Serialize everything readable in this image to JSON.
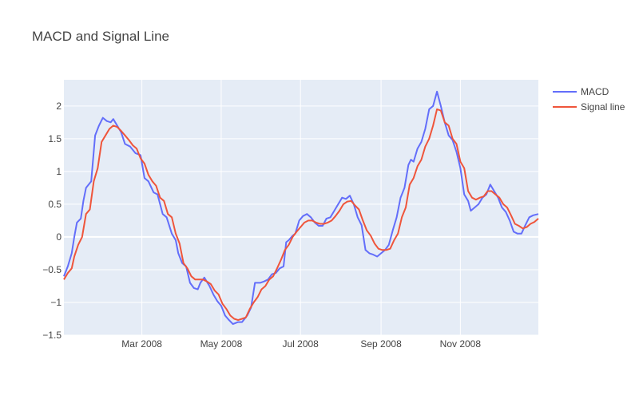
{
  "chart_data": {
    "type": "line",
    "title": "MACD and Signal Line",
    "xlabel": "",
    "ylabel": "",
    "x_range": [
      "2008-01-01",
      "2008-12-31"
    ],
    "ylim": [
      -1.5,
      2.4
    ],
    "x_ticks": [
      {
        "date": "2008-03-01",
        "label": "Mar 2008"
      },
      {
        "date": "2008-05-01",
        "label": "May 2008"
      },
      {
        "date": "2008-07-01",
        "label": "Jul 2008"
      },
      {
        "date": "2008-09-01",
        "label": "Sep 2008"
      },
      {
        "date": "2008-11-01",
        "label": "Nov 2008"
      }
    ],
    "y_ticks": [
      {
        "value": 2,
        "label": "2"
      },
      {
        "value": 1.5,
        "label": "1.5"
      },
      {
        "value": 1,
        "label": "1"
      },
      {
        "value": 0.5,
        "label": "0.5"
      },
      {
        "value": 0,
        "label": "0"
      },
      {
        "value": -0.5,
        "label": "−0.5"
      },
      {
        "value": -1,
        "label": "−1"
      },
      {
        "value": -1.5,
        "label": "−1.5"
      }
    ],
    "grid": true,
    "legend_position": "top-right",
    "series": [
      {
        "name": "MACD",
        "color": "#636efa",
        "points": [
          [
            "2008-01-01",
            -0.6
          ],
          [
            "2008-01-04",
            -0.45
          ],
          [
            "2008-01-07",
            -0.25
          ],
          [
            "2008-01-09",
            0.0
          ],
          [
            "2008-01-11",
            0.22
          ],
          [
            "2008-01-14",
            0.28
          ],
          [
            "2008-01-16",
            0.55
          ],
          [
            "2008-01-18",
            0.75
          ],
          [
            "2008-01-22",
            0.85
          ],
          [
            "2008-01-25",
            1.55
          ],
          [
            "2008-01-28",
            1.7
          ],
          [
            "2008-01-31",
            1.82
          ],
          [
            "2008-02-03",
            1.77
          ],
          [
            "2008-02-06",
            1.75
          ],
          [
            "2008-02-08",
            1.8
          ],
          [
            "2008-02-11",
            1.7
          ],
          [
            "2008-02-14",
            1.6
          ],
          [
            "2008-02-17",
            1.42
          ],
          [
            "2008-02-21",
            1.38
          ],
          [
            "2008-02-25",
            1.28
          ],
          [
            "2008-02-29",
            1.25
          ],
          [
            "2008-03-03",
            0.9
          ],
          [
            "2008-03-06",
            0.85
          ],
          [
            "2008-03-10",
            0.68
          ],
          [
            "2008-03-13",
            0.65
          ],
          [
            "2008-03-17",
            0.35
          ],
          [
            "2008-03-20",
            0.3
          ],
          [
            "2008-03-24",
            0.05
          ],
          [
            "2008-03-27",
            -0.05
          ],
          [
            "2008-03-29",
            -0.25
          ],
          [
            "2008-04-01",
            -0.4
          ],
          [
            "2008-04-04",
            -0.45
          ],
          [
            "2008-04-07",
            -0.7
          ],
          [
            "2008-04-10",
            -0.78
          ],
          [
            "2008-04-13",
            -0.8
          ],
          [
            "2008-04-15",
            -0.7
          ],
          [
            "2008-04-18",
            -0.62
          ],
          [
            "2008-04-22",
            -0.75
          ],
          [
            "2008-04-25",
            -0.88
          ],
          [
            "2008-04-28",
            -0.98
          ],
          [
            "2008-05-01",
            -1.05
          ],
          [
            "2008-05-04",
            -1.2
          ],
          [
            "2008-05-07",
            -1.27
          ],
          [
            "2008-05-10",
            -1.33
          ],
          [
            "2008-05-14",
            -1.3
          ],
          [
            "2008-05-17",
            -1.3
          ],
          [
            "2008-05-21",
            -1.2
          ],
          [
            "2008-05-24",
            -1.08
          ],
          [
            "2008-05-27",
            -0.7
          ],
          [
            "2008-05-31",
            -0.7
          ],
          [
            "2008-06-03",
            -0.68
          ],
          [
            "2008-06-06",
            -0.65
          ],
          [
            "2008-06-09",
            -0.57
          ],
          [
            "2008-06-12",
            -0.55
          ],
          [
            "2008-06-15",
            -0.48
          ],
          [
            "2008-06-18",
            -0.45
          ],
          [
            "2008-06-20",
            -0.08
          ],
          [
            "2008-06-22",
            -0.05
          ],
          [
            "2008-06-25",
            0.02
          ],
          [
            "2008-06-27",
            0.05
          ],
          [
            "2008-06-30",
            0.25
          ],
          [
            "2008-07-03",
            0.32
          ],
          [
            "2008-07-06",
            0.35
          ],
          [
            "2008-07-09",
            0.3
          ],
          [
            "2008-07-12",
            0.22
          ],
          [
            "2008-07-15",
            0.17
          ],
          [
            "2008-07-18",
            0.17
          ],
          [
            "2008-07-21",
            0.28
          ],
          [
            "2008-07-24",
            0.3
          ],
          [
            "2008-07-27",
            0.4
          ],
          [
            "2008-07-30",
            0.5
          ],
          [
            "2008-08-02",
            0.6
          ],
          [
            "2008-08-05",
            0.58
          ],
          [
            "2008-08-08",
            0.63
          ],
          [
            "2008-08-11",
            0.5
          ],
          [
            "2008-08-14",
            0.3
          ],
          [
            "2008-08-17",
            0.18
          ],
          [
            "2008-08-20",
            -0.2
          ],
          [
            "2008-08-23",
            -0.25
          ],
          [
            "2008-08-26",
            -0.27
          ],
          [
            "2008-08-29",
            -0.3
          ],
          [
            "2008-09-01",
            -0.25
          ],
          [
            "2008-09-04",
            -0.2
          ],
          [
            "2008-09-07",
            -0.12
          ],
          [
            "2008-09-10",
            0.1
          ],
          [
            "2008-09-13",
            0.3
          ],
          [
            "2008-09-16",
            0.6
          ],
          [
            "2008-09-19",
            0.75
          ],
          [
            "2008-09-22",
            1.1
          ],
          [
            "2008-09-24",
            1.18
          ],
          [
            "2008-09-26",
            1.15
          ],
          [
            "2008-09-29",
            1.35
          ],
          [
            "2008-10-02",
            1.45
          ],
          [
            "2008-10-05",
            1.65
          ],
          [
            "2008-10-08",
            1.95
          ],
          [
            "2008-10-11",
            2.0
          ],
          [
            "2008-10-14",
            2.22
          ],
          [
            "2008-10-17",
            2.0
          ],
          [
            "2008-10-20",
            1.75
          ],
          [
            "2008-10-23",
            1.55
          ],
          [
            "2008-10-26",
            1.48
          ],
          [
            "2008-10-29",
            1.3
          ],
          [
            "2008-11-01",
            1.05
          ],
          [
            "2008-11-04",
            0.65
          ],
          [
            "2008-11-07",
            0.55
          ],
          [
            "2008-11-09",
            0.4
          ],
          [
            "2008-11-12",
            0.45
          ],
          [
            "2008-11-15",
            0.5
          ],
          [
            "2008-11-18",
            0.6
          ],
          [
            "2008-11-21",
            0.65
          ],
          [
            "2008-11-24",
            0.8
          ],
          [
            "2008-11-27",
            0.7
          ],
          [
            "2008-11-30",
            0.6
          ],
          [
            "2008-12-03",
            0.45
          ],
          [
            "2008-12-06",
            0.38
          ],
          [
            "2008-12-09",
            0.25
          ],
          [
            "2008-12-12",
            0.08
          ],
          [
            "2008-12-15",
            0.05
          ],
          [
            "2008-12-18",
            0.05
          ],
          [
            "2008-12-21",
            0.18
          ],
          [
            "2008-12-24",
            0.3
          ],
          [
            "2008-12-27",
            0.33
          ],
          [
            "2008-12-31",
            0.35
          ]
        ]
      },
      {
        "name": "Signal line",
        "color": "#ef553b",
        "points": [
          [
            "2008-01-01",
            -0.65
          ],
          [
            "2008-01-04",
            -0.55
          ],
          [
            "2008-01-07",
            -0.48
          ],
          [
            "2008-01-09",
            -0.3
          ],
          [
            "2008-01-12",
            -0.12
          ],
          [
            "2008-01-15",
            0.0
          ],
          [
            "2008-01-18",
            0.35
          ],
          [
            "2008-01-21",
            0.42
          ],
          [
            "2008-01-24",
            0.85
          ],
          [
            "2008-01-27",
            1.05
          ],
          [
            "2008-01-30",
            1.45
          ],
          [
            "2008-02-02",
            1.55
          ],
          [
            "2008-02-05",
            1.65
          ],
          [
            "2008-02-08",
            1.7
          ],
          [
            "2008-02-11",
            1.68
          ],
          [
            "2008-02-14",
            1.62
          ],
          [
            "2008-02-17",
            1.55
          ],
          [
            "2008-02-20",
            1.48
          ],
          [
            "2008-02-23",
            1.4
          ],
          [
            "2008-02-26",
            1.35
          ],
          [
            "2008-02-29",
            1.2
          ],
          [
            "2008-03-03",
            1.12
          ],
          [
            "2008-03-06",
            0.95
          ],
          [
            "2008-03-09",
            0.85
          ],
          [
            "2008-03-12",
            0.78
          ],
          [
            "2008-03-15",
            0.6
          ],
          [
            "2008-03-18",
            0.55
          ],
          [
            "2008-03-21",
            0.35
          ],
          [
            "2008-03-24",
            0.3
          ],
          [
            "2008-03-27",
            0.05
          ],
          [
            "2008-03-30",
            -0.1
          ],
          [
            "2008-04-02",
            -0.4
          ],
          [
            "2008-04-05",
            -0.48
          ],
          [
            "2008-04-08",
            -0.6
          ],
          [
            "2008-04-11",
            -0.65
          ],
          [
            "2008-04-14",
            -0.65
          ],
          [
            "2008-04-17",
            -0.65
          ],
          [
            "2008-04-20",
            -0.68
          ],
          [
            "2008-04-23",
            -0.72
          ],
          [
            "2008-04-26",
            -0.82
          ],
          [
            "2008-04-29",
            -0.88
          ],
          [
            "2008-05-02",
            -1.02
          ],
          [
            "2008-05-05",
            -1.1
          ],
          [
            "2008-05-08",
            -1.2
          ],
          [
            "2008-05-11",
            -1.25
          ],
          [
            "2008-05-14",
            -1.27
          ],
          [
            "2008-05-17",
            -1.25
          ],
          [
            "2008-05-20",
            -1.23
          ],
          [
            "2008-05-23",
            -1.1
          ],
          [
            "2008-05-26",
            -1.0
          ],
          [
            "2008-05-29",
            -0.92
          ],
          [
            "2008-06-01",
            -0.8
          ],
          [
            "2008-06-04",
            -0.75
          ],
          [
            "2008-06-07",
            -0.65
          ],
          [
            "2008-06-10",
            -0.6
          ],
          [
            "2008-06-13",
            -0.48
          ],
          [
            "2008-06-16",
            -0.35
          ],
          [
            "2008-06-19",
            -0.2
          ],
          [
            "2008-06-22",
            -0.12
          ],
          [
            "2008-06-25",
            0.0
          ],
          [
            "2008-06-28",
            0.08
          ],
          [
            "2008-07-01",
            0.15
          ],
          [
            "2008-07-04",
            0.22
          ],
          [
            "2008-07-07",
            0.25
          ],
          [
            "2008-07-10",
            0.25
          ],
          [
            "2008-07-13",
            0.22
          ],
          [
            "2008-07-16",
            0.2
          ],
          [
            "2008-07-19",
            0.2
          ],
          [
            "2008-07-22",
            0.22
          ],
          [
            "2008-07-25",
            0.25
          ],
          [
            "2008-07-28",
            0.32
          ],
          [
            "2008-07-31",
            0.4
          ],
          [
            "2008-08-03",
            0.5
          ],
          [
            "2008-08-06",
            0.54
          ],
          [
            "2008-08-09",
            0.55
          ],
          [
            "2008-08-12",
            0.48
          ],
          [
            "2008-08-15",
            0.42
          ],
          [
            "2008-08-18",
            0.25
          ],
          [
            "2008-08-21",
            0.1
          ],
          [
            "2008-08-24",
            0.02
          ],
          [
            "2008-08-27",
            -0.1
          ],
          [
            "2008-08-30",
            -0.18
          ],
          [
            "2008-09-02",
            -0.2
          ],
          [
            "2008-09-05",
            -0.2
          ],
          [
            "2008-09-08",
            -0.18
          ],
          [
            "2008-09-11",
            -0.05
          ],
          [
            "2008-09-14",
            0.05
          ],
          [
            "2008-09-17",
            0.3
          ],
          [
            "2008-09-20",
            0.45
          ],
          [
            "2008-09-23",
            0.8
          ],
          [
            "2008-09-26",
            0.9
          ],
          [
            "2008-09-29",
            1.08
          ],
          [
            "2008-10-02",
            1.18
          ],
          [
            "2008-10-05",
            1.38
          ],
          [
            "2008-10-08",
            1.5
          ],
          [
            "2008-10-11",
            1.7
          ],
          [
            "2008-10-14",
            1.95
          ],
          [
            "2008-10-17",
            1.93
          ],
          [
            "2008-10-20",
            1.75
          ],
          [
            "2008-10-23",
            1.7
          ],
          [
            "2008-10-26",
            1.5
          ],
          [
            "2008-10-29",
            1.42
          ],
          [
            "2008-11-01",
            1.15
          ],
          [
            "2008-11-04",
            1.05
          ],
          [
            "2008-11-07",
            0.7
          ],
          [
            "2008-11-10",
            0.6
          ],
          [
            "2008-11-13",
            0.57
          ],
          [
            "2008-11-16",
            0.6
          ],
          [
            "2008-11-19",
            0.62
          ],
          [
            "2008-11-22",
            0.7
          ],
          [
            "2008-11-25",
            0.7
          ],
          [
            "2008-11-28",
            0.65
          ],
          [
            "2008-12-01",
            0.6
          ],
          [
            "2008-12-04",
            0.5
          ],
          [
            "2008-12-07",
            0.45
          ],
          [
            "2008-12-10",
            0.33
          ],
          [
            "2008-12-13",
            0.2
          ],
          [
            "2008-12-16",
            0.17
          ],
          [
            "2008-12-19",
            0.13
          ],
          [
            "2008-12-22",
            0.15
          ],
          [
            "2008-12-25",
            0.2
          ],
          [
            "2008-12-28",
            0.23
          ],
          [
            "2008-12-31",
            0.28
          ]
        ]
      }
    ]
  }
}
